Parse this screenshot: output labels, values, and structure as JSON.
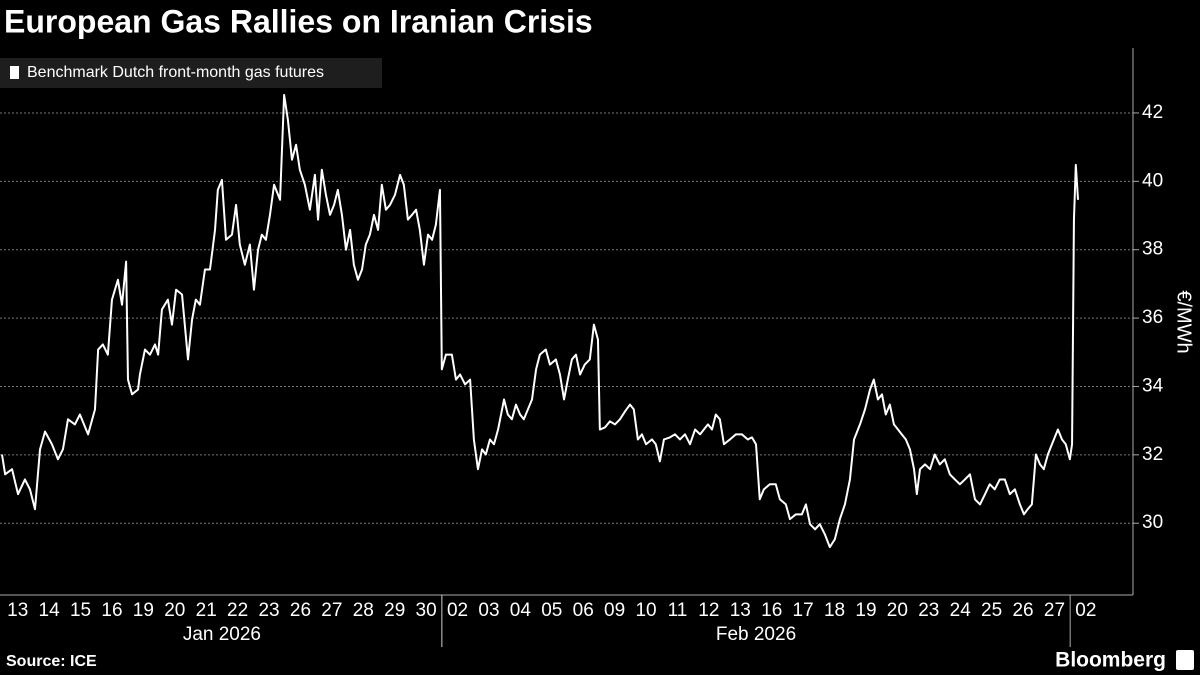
{
  "chart_data": {
    "type": "line",
    "title": "European Gas Rallies on Iranian Crisis",
    "y_label": "€/MWh",
    "source": "Source: ICE",
    "brand": "Bloomberg",
    "ylim": [
      27.9,
      43.9
    ],
    "yticks": [
      30,
      32,
      34,
      36,
      38,
      40,
      42
    ],
    "y_axis_side": "right",
    "grid": true,
    "xlim": [
      0,
      36
    ],
    "xticks": [
      {
        "value": 0.5,
        "label": "13"
      },
      {
        "value": 1.5,
        "label": "14"
      },
      {
        "value": 2.5,
        "label": "15"
      },
      {
        "value": 3.5,
        "label": "16"
      },
      {
        "value": 4.5,
        "label": "19"
      },
      {
        "value": 5.5,
        "label": "20"
      },
      {
        "value": 6.5,
        "label": "21"
      },
      {
        "value": 7.5,
        "label": "22"
      },
      {
        "value": 8.5,
        "label": "23"
      },
      {
        "value": 9.5,
        "label": "26"
      },
      {
        "value": 10.5,
        "label": "27"
      },
      {
        "value": 11.5,
        "label": "28"
      },
      {
        "value": 12.5,
        "label": "29"
      },
      {
        "value": 13.5,
        "label": "30"
      },
      {
        "value": 14.5,
        "label": "02"
      },
      {
        "value": 15.5,
        "label": "03"
      },
      {
        "value": 16.5,
        "label": "04"
      },
      {
        "value": 17.5,
        "label": "05"
      },
      {
        "value": 18.5,
        "label": "06"
      },
      {
        "value": 19.5,
        "label": "09"
      },
      {
        "value": 20.5,
        "label": "10"
      },
      {
        "value": 21.5,
        "label": "11"
      },
      {
        "value": 22.5,
        "label": "12"
      },
      {
        "value": 23.5,
        "label": "13"
      },
      {
        "value": 24.5,
        "label": "16"
      },
      {
        "value": 25.5,
        "label": "17"
      },
      {
        "value": 26.5,
        "label": "18"
      },
      {
        "value": 27.5,
        "label": "19"
      },
      {
        "value": 28.5,
        "label": "20"
      },
      {
        "value": 29.5,
        "label": "23"
      },
      {
        "value": 30.5,
        "label": "24"
      },
      {
        "value": 31.5,
        "label": "25"
      },
      {
        "value": 32.5,
        "label": "26"
      },
      {
        "value": 33.5,
        "label": "27"
      },
      {
        "value": 34.5,
        "label": "02"
      }
    ],
    "x_groups": [
      {
        "label": "Jan 2026",
        "start": 0,
        "end": 14
      },
      {
        "label": "Feb 2026",
        "start": 14,
        "end": 34
      }
    ],
    "x": [
      0,
      0.1,
      0.32,
      0.51,
      0.73,
      0.89,
      1.05,
      1.21,
      1.37,
      1.59,
      1.78,
      1.94,
      2.1,
      2.32,
      2.48,
      2.74,
      2.96,
      3.06,
      3.21,
      3.37,
      3.5,
      3.69,
      3.82,
      3.95,
      4.01,
      4.14,
      4.33,
      4.39,
      4.55,
      4.71,
      4.87,
      4.97,
      5.09,
      5.28,
      5.41,
      5.54,
      5.73,
      5.92,
      6.05,
      6.17,
      6.3,
      6.46,
      6.62,
      6.78,
      6.87,
      7.0,
      7.13,
      7.32,
      7.45,
      7.57,
      7.73,
      7.89,
      8.02,
      8.15,
      8.27,
      8.4,
      8.53,
      8.66,
      8.85,
      8.98,
      9.1,
      9.23,
      9.36,
      9.48,
      9.64,
      9.8,
      9.96,
      10.06,
      10.18,
      10.31,
      10.44,
      10.57,
      10.69,
      10.82,
      10.95,
      11.08,
      11.2,
      11.33,
      11.46,
      11.58,
      11.71,
      11.84,
      11.97,
      12.09,
      12.22,
      12.35,
      12.51,
      12.67,
      12.79,
      12.92,
      13.05,
      13.18,
      13.3,
      13.43,
      13.56,
      13.69,
      13.81,
      13.94,
      14.0,
      14.13,
      14.32,
      14.45,
      14.58,
      14.74,
      14.9,
      15.02,
      15.15,
      15.28,
      15.4,
      15.53,
      15.66,
      15.79,
      15.98,
      16.1,
      16.23,
      16.36,
      16.49,
      16.61,
      16.74,
      16.87,
      17.0,
      17.12,
      17.31,
      17.44,
      17.63,
      17.76,
      17.89,
      18.01,
      18.14,
      18.27,
      18.4,
      18.55,
      18.71,
      18.84,
      18.97,
      19.03,
      19.19,
      19.35,
      19.51,
      19.67,
      19.83,
      19.99,
      20.11,
      20.24,
      20.37,
      20.5,
      20.69,
      20.81,
      20.94,
      21.07,
      21.26,
      21.42,
      21.58,
      21.74,
      21.9,
      22.06,
      22.22,
      22.34,
      22.47,
      22.6,
      22.72,
      22.85,
      22.98,
      23.17,
      23.36,
      23.55,
      23.74,
      23.87,
      24.0,
      24.12,
      24.25,
      24.44,
      24.63,
      24.76,
      24.95,
      25.08,
      25.27,
      25.46,
      25.59,
      25.72,
      25.88,
      26.03,
      26.19,
      26.35,
      26.51,
      26.67,
      26.83,
      26.99,
      27.12,
      27.31,
      27.47,
      27.63,
      27.75,
      27.88,
      28.01,
      28.13,
      28.26,
      28.39,
      28.52,
      28.64,
      28.77,
      28.9,
      29.03,
      29.12,
      29.22,
      29.38,
      29.54,
      29.69,
      29.85,
      30.01,
      30.17,
      30.33,
      30.49,
      30.65,
      30.81,
      30.97,
      31.13,
      31.29,
      31.44,
      31.6,
      31.76,
      31.92,
      32.08,
      32.24,
      32.4,
      32.53,
      32.65,
      32.78,
      32.91,
      33.04,
      33.16,
      33.29,
      33.42,
      33.61,
      33.74,
      33.86,
      33.99,
      34.06,
      34.12,
      34.18,
      34.25
    ],
    "series": [
      {
        "name": "Benchmark Dutch front-month gas futures",
        "color": "#ffffff",
        "values": [
          32.01,
          31.43,
          31.58,
          30.85,
          31.28,
          30.99,
          30.41,
          32.16,
          32.68,
          32.31,
          31.87,
          32.16,
          33.04,
          32.89,
          33.18,
          32.6,
          33.33,
          35.08,
          35.23,
          34.93,
          36.54,
          37.12,
          36.39,
          37.65,
          34.2,
          33.77,
          33.91,
          34.35,
          35.08,
          34.93,
          35.23,
          34.93,
          36.25,
          36.54,
          35.81,
          36.83,
          36.69,
          34.79,
          35.96,
          36.54,
          36.39,
          37.42,
          37.42,
          38.58,
          39.75,
          40.04,
          38.29,
          38.44,
          39.31,
          38.15,
          37.56,
          38.15,
          36.83,
          38.0,
          38.44,
          38.29,
          39.02,
          39.9,
          39.46,
          42.53,
          41.8,
          40.63,
          41.07,
          40.34,
          39.9,
          39.17,
          40.19,
          38.88,
          40.34,
          39.61,
          39.02,
          39.31,
          39.75,
          39.02,
          38.0,
          38.58,
          37.56,
          37.12,
          37.42,
          38.15,
          38.44,
          39.02,
          38.58,
          39.9,
          39.17,
          39.31,
          39.61,
          40.19,
          39.9,
          38.88,
          39.02,
          39.17,
          38.58,
          37.56,
          38.44,
          38.29,
          38.73,
          39.75,
          34.5,
          34.93,
          34.93,
          34.2,
          34.35,
          34.06,
          34.2,
          32.45,
          31.58,
          32.16,
          32.01,
          32.45,
          32.31,
          32.74,
          33.62,
          33.18,
          33.04,
          33.47,
          33.18,
          33.04,
          33.33,
          33.62,
          34.5,
          34.93,
          35.08,
          34.64,
          34.79,
          34.35,
          33.62,
          34.2,
          34.79,
          34.93,
          34.35,
          34.64,
          34.79,
          35.81,
          35.37,
          32.74,
          32.8,
          32.98,
          32.89,
          33.04,
          33.27,
          33.47,
          33.33,
          32.45,
          32.6,
          32.31,
          32.45,
          32.31,
          31.81,
          32.45,
          32.51,
          32.6,
          32.45,
          32.6,
          32.31,
          32.74,
          32.6,
          32.74,
          32.89,
          32.74,
          33.18,
          33.04,
          32.31,
          32.45,
          32.6,
          32.6,
          32.45,
          32.51,
          32.31,
          30.7,
          30.99,
          31.14,
          31.14,
          30.7,
          30.55,
          30.12,
          30.26,
          30.26,
          30.55,
          29.97,
          29.82,
          29.97,
          29.68,
          29.3,
          29.53,
          30.12,
          30.55,
          31.28,
          32.45,
          32.89,
          33.33,
          33.91,
          34.2,
          33.62,
          33.77,
          33.18,
          33.47,
          32.89,
          32.74,
          32.6,
          32.45,
          32.16,
          31.58,
          30.85,
          31.58,
          31.72,
          31.58,
          32.01,
          31.72,
          31.87,
          31.43,
          31.28,
          31.14,
          31.28,
          31.43,
          30.7,
          30.55,
          30.85,
          31.14,
          30.99,
          31.28,
          31.28,
          30.85,
          30.99,
          30.55,
          30.26,
          30.41,
          30.55,
          32.01,
          31.72,
          31.58,
          32.01,
          32.31,
          32.74,
          32.45,
          32.31,
          31.87,
          32.31,
          38.88,
          40.48,
          39.46
        ]
      }
    ]
  }
}
